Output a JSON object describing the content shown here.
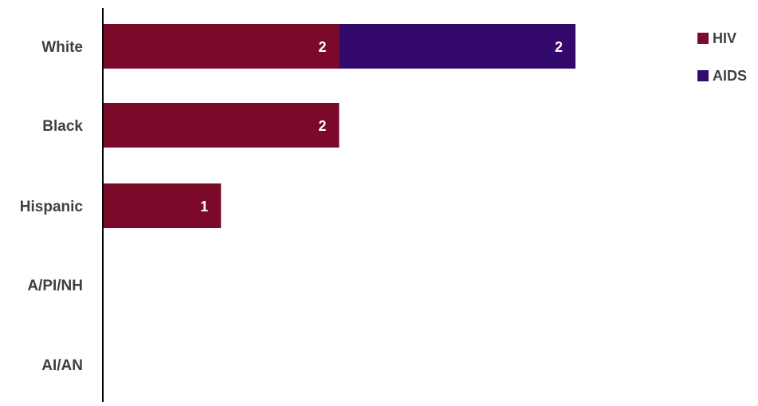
{
  "chart_data": {
    "type": "bar",
    "orientation": "horizontal",
    "stacked": true,
    "categories": [
      "White",
      "Black",
      "Hispanic",
      "A/PI/NH",
      "AI/AN"
    ],
    "series": [
      {
        "name": "HIV",
        "values": [
          2,
          2,
          1,
          0,
          0
        ],
        "color": "#7B0A2A"
      },
      {
        "name": "AIDS",
        "values": [
          2,
          0,
          0,
          0,
          0
        ],
        "color": "#330A6B"
      }
    ],
    "xlim": [
      0,
      8
    ],
    "grid": false,
    "legend": "top-right"
  }
}
